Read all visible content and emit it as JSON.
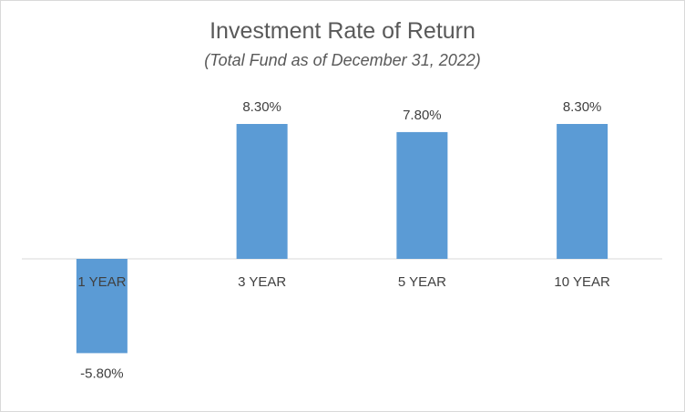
{
  "chart_data": {
    "type": "bar",
    "title": "Investment Rate of Return",
    "subtitle": "(Total Fund as of December 31, 2022)",
    "categories": [
      "1 YEAR",
      "3 YEAR",
      "5 YEAR",
      "10 YEAR"
    ],
    "values": [
      -5.8,
      8.3,
      7.8,
      8.3
    ],
    "value_labels": [
      "-5.80%",
      "8.30%",
      "7.80%",
      "8.30%"
    ],
    "xlabel": "",
    "ylabel": "",
    "ylim": [
      -5.8,
      8.3
    ],
    "grid": false,
    "bar_color": "#5B9BD5"
  }
}
